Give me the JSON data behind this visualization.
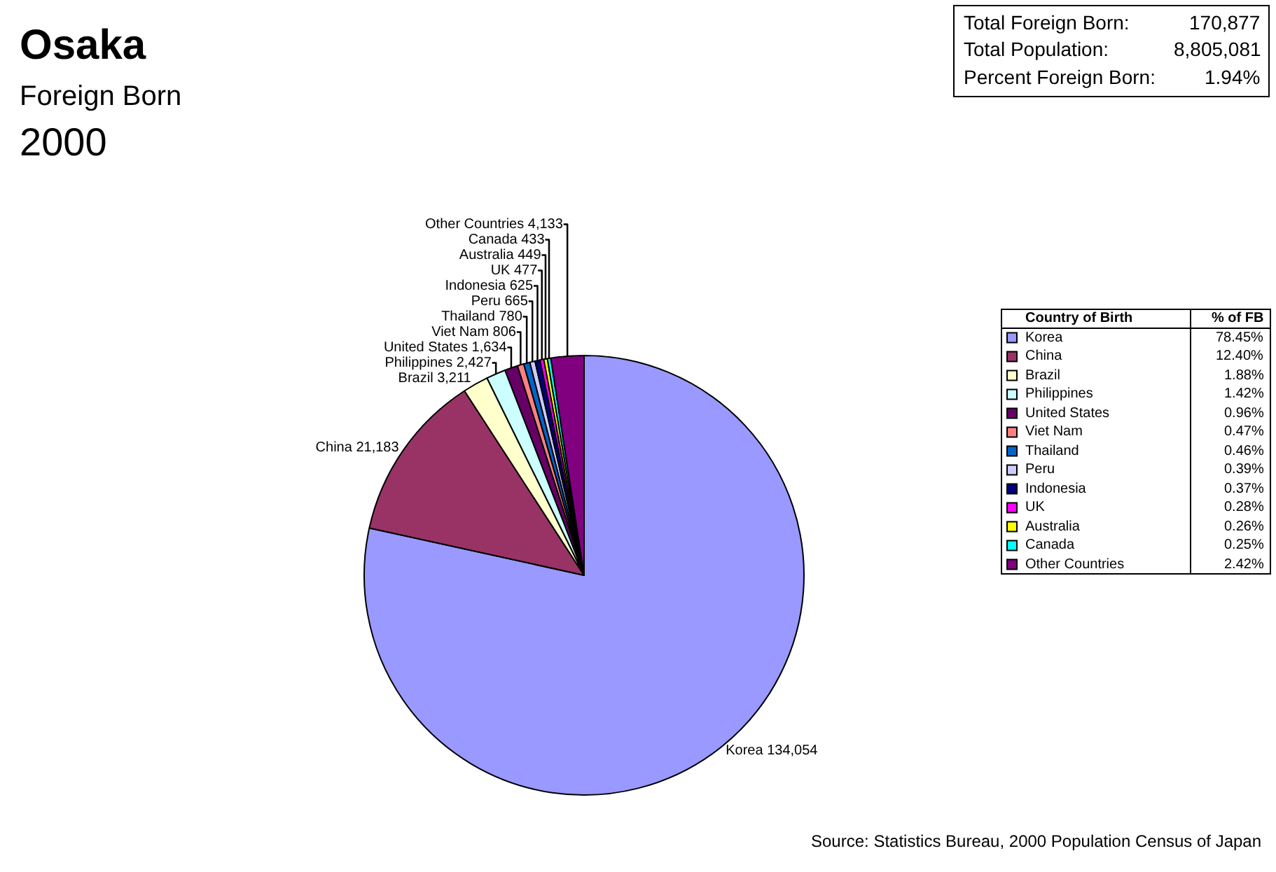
{
  "chart_data": {
    "type": "pie",
    "title": "Osaka",
    "subtitle": "Foreign Born\n2000",
    "categories": [
      "Korea",
      "China",
      "Brazil",
      "Philippines",
      "United States",
      "Viet Nam",
      "Thailand",
      "Peru",
      "Indonesia",
      "UK",
      "Australia",
      "Canada",
      "Other Countries"
    ],
    "values": [
      134054,
      21183,
      3211,
      2427,
      1634,
      806,
      780,
      665,
      625,
      477,
      449,
      433,
      4133
    ],
    "colors": [
      "#9999ff",
      "#993366",
      "#ffffcc",
      "#ccffff",
      "#660066",
      "#ff8080",
      "#0066cc",
      "#ccccff",
      "#000080",
      "#ff00ff",
      "#ffff00",
      "#00ffff",
      "#800080"
    ],
    "value_labels": [
      "134,054",
      "21,183",
      "3,211",
      "2,427",
      "1,634",
      "806",
      "780",
      "665",
      "625",
      "477",
      "449",
      "433",
      "4,133"
    ],
    "legend": "right",
    "legend_title": "Country of Birth",
    "annotations": [
      "Total Foreign Born:",
      "170,877",
      "Total Population:",
      "8,805,081",
      "Percent Foreign Born:",
      "1.94%",
      "Source: Statistics Bureau, 2000 Population Census of Japan",
      "% of FB",
      "78.45%",
      "12.40%",
      "1.88%",
      "1.42%",
      "0.96%",
      "0.47%",
      "0.46%",
      "0.39%",
      "0.37%",
      "0.28%",
      "0.26%",
      "0.25%",
      "2.42%"
    ]
  }
}
